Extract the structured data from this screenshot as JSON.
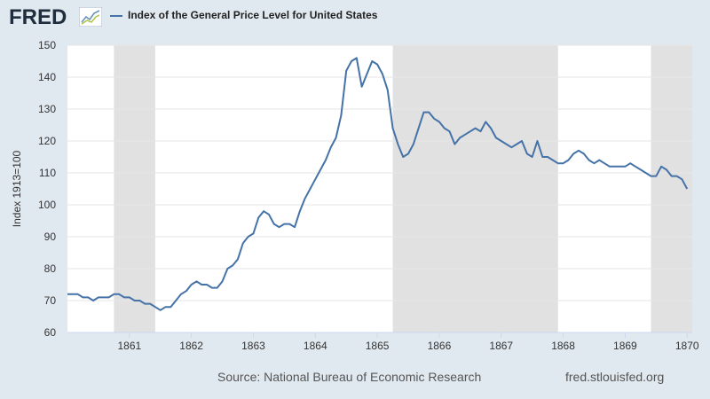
{
  "header": {
    "logo_text": "FRED",
    "logo_icon": "trend-line-icon",
    "legend_label": "Index of the General Price Level for United States"
  },
  "footer": {
    "source": "Source: National Bureau of Economic Research",
    "url": "fred.stlouisfed.org"
  },
  "colors": {
    "series": "#4572a7",
    "recession": "#e1e1e1",
    "background": "#e1e9f0",
    "plot": "#ffffff"
  },
  "chart_data": {
    "type": "line",
    "title": "",
    "xlabel": "",
    "ylabel": "Index 1913=100",
    "ylim": [
      60,
      150
    ],
    "yticks": [
      60,
      70,
      80,
      90,
      100,
      110,
      120,
      130,
      140,
      150
    ],
    "xlim": [
      1860.0,
      1870.083
    ],
    "xticks": [
      "1861",
      "1862",
      "1863",
      "1864",
      "1865",
      "1866",
      "1867",
      "1868",
      "1869",
      "1870"
    ],
    "xtick_values": [
      1861,
      1862,
      1863,
      1864,
      1865,
      1866,
      1867,
      1868,
      1869,
      1870
    ],
    "grid": true,
    "legend": "top-left",
    "recessions": [
      [
        1860.75,
        1861.4167
      ],
      [
        1865.25,
        1867.9167
      ],
      [
        1869.4167,
        1870.083
      ]
    ],
    "series": [
      {
        "name": "Index of the General Price Level for United States",
        "start_year": 1860,
        "frequency": "monthly",
        "values": [
          72,
          72,
          72,
          71,
          71,
          70,
          71,
          71,
          71,
          72,
          72,
          71,
          71,
          70,
          70,
          69,
          69,
          68,
          67,
          68,
          68,
          70,
          72,
          73,
          75,
          76,
          75,
          75,
          74,
          74,
          76,
          80,
          81,
          83,
          88,
          90,
          91,
          96,
          98,
          97,
          94,
          93,
          94,
          94,
          93,
          98,
          102,
          105,
          108,
          111,
          114,
          118,
          121,
          128,
          142,
          145,
          146,
          137,
          141,
          145,
          144,
          141,
          136,
          124,
          119,
          115,
          116,
          119,
          124,
          129,
          129,
          127,
          126,
          124,
          123,
          119,
          121,
          122,
          123,
          124,
          123,
          126,
          124,
          121,
          120,
          119,
          118,
          119,
          120,
          116,
          115,
          120,
          115,
          115,
          114,
          113,
          113,
          114,
          116,
          117,
          116,
          114,
          113,
          114,
          113,
          112,
          112,
          112,
          112,
          113,
          112,
          111,
          110,
          109,
          109,
          112,
          111,
          109,
          109,
          108,
          105
        ]
      }
    ]
  }
}
